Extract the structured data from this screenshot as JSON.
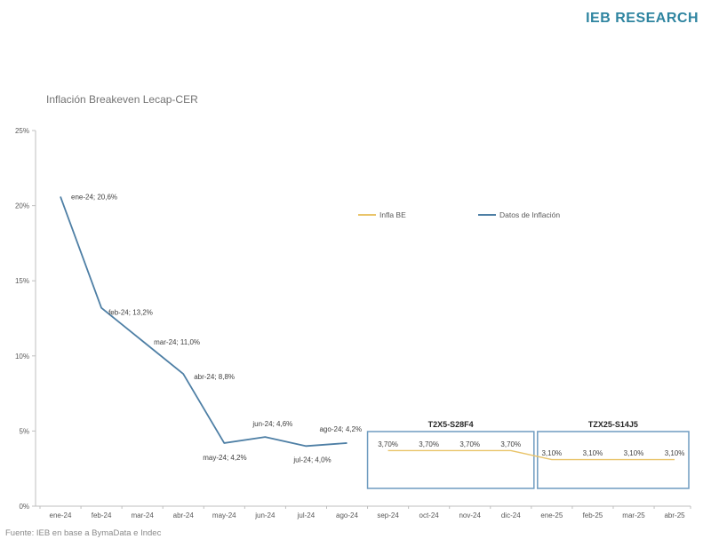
{
  "header": {
    "brand": "IEB RESEARCH",
    "brand_color": "#2e84a0"
  },
  "chart": {
    "title": "Inflación Breakeven Lecap-CER",
    "source_note": "Fuente: IEB en base a BymaData e Indec"
  },
  "chart_data": {
    "type": "line",
    "title": "Inflación Breakeven Lecap-CER",
    "categories": [
      "ene-24",
      "feb-24",
      "mar-24",
      "abr-24",
      "may-24",
      "jun-24",
      "jul-24",
      "ago-24",
      "sep-24",
      "oct-24",
      "nov-24",
      "dic-24",
      "ene-25",
      "feb-25",
      "mar-25",
      "abr-25"
    ],
    "ylim": [
      0,
      25
    ],
    "yticks": [
      {
        "value": 0,
        "label": "0%"
      },
      {
        "value": 5,
        "label": "5%"
      },
      {
        "value": 10,
        "label": "10%"
      },
      {
        "value": 15,
        "label": "15%"
      },
      {
        "value": 20,
        "label": "20%"
      },
      {
        "value": 25,
        "label": "25%"
      }
    ],
    "grid": false,
    "legend_position": "inside-top",
    "series": [
      {
        "name": "Datos de Inflación",
        "color": "#4e7fa5",
        "category_start": "ene-24",
        "values": [
          20.6,
          13.2,
          11.0,
          8.8,
          4.2,
          4.6,
          4.0,
          4.2
        ],
        "point_labels": [
          "ene-24; 20,6%",
          "feb-24; 13,2%",
          "mar-24; 11,0%",
          "abr-24; 8,8%",
          "may-24; 4,2%",
          "jun-24; 4,6%",
          "jul-24; 4,0%",
          "ago-24; 4,2%"
        ]
      },
      {
        "name": "Infla BE",
        "color": "#e9c46a",
        "category_start": "sep-24",
        "values": [
          3.7,
          3.7,
          3.7,
          3.7,
          3.1,
          3.1,
          3.1,
          3.1
        ]
      }
    ],
    "legend": [
      {
        "label": "Infla BE",
        "color": "#e9c46a"
      },
      {
        "label": "Datos de Inflación",
        "color": "#4e7fa5"
      }
    ],
    "annotations": [
      {
        "title": "T2X5-S28F4",
        "from": "sep-24",
        "to": "dic-24",
        "value_labels": [
          "3,70%",
          "3,70%",
          "3,70%",
          "3,70%"
        ],
        "border_color": "#6f9cc0"
      },
      {
        "title": "TZX25-S14J5",
        "from": "ene-25",
        "to": "abr-25",
        "value_labels": [
          "3,10%",
          "3,10%",
          "3,10%",
          "3,10%"
        ],
        "border_color": "#6f9cc0"
      }
    ],
    "axis_color": "#bfbfbf",
    "tick_label_color": "#595959",
    "data_label_color": "#404040"
  }
}
